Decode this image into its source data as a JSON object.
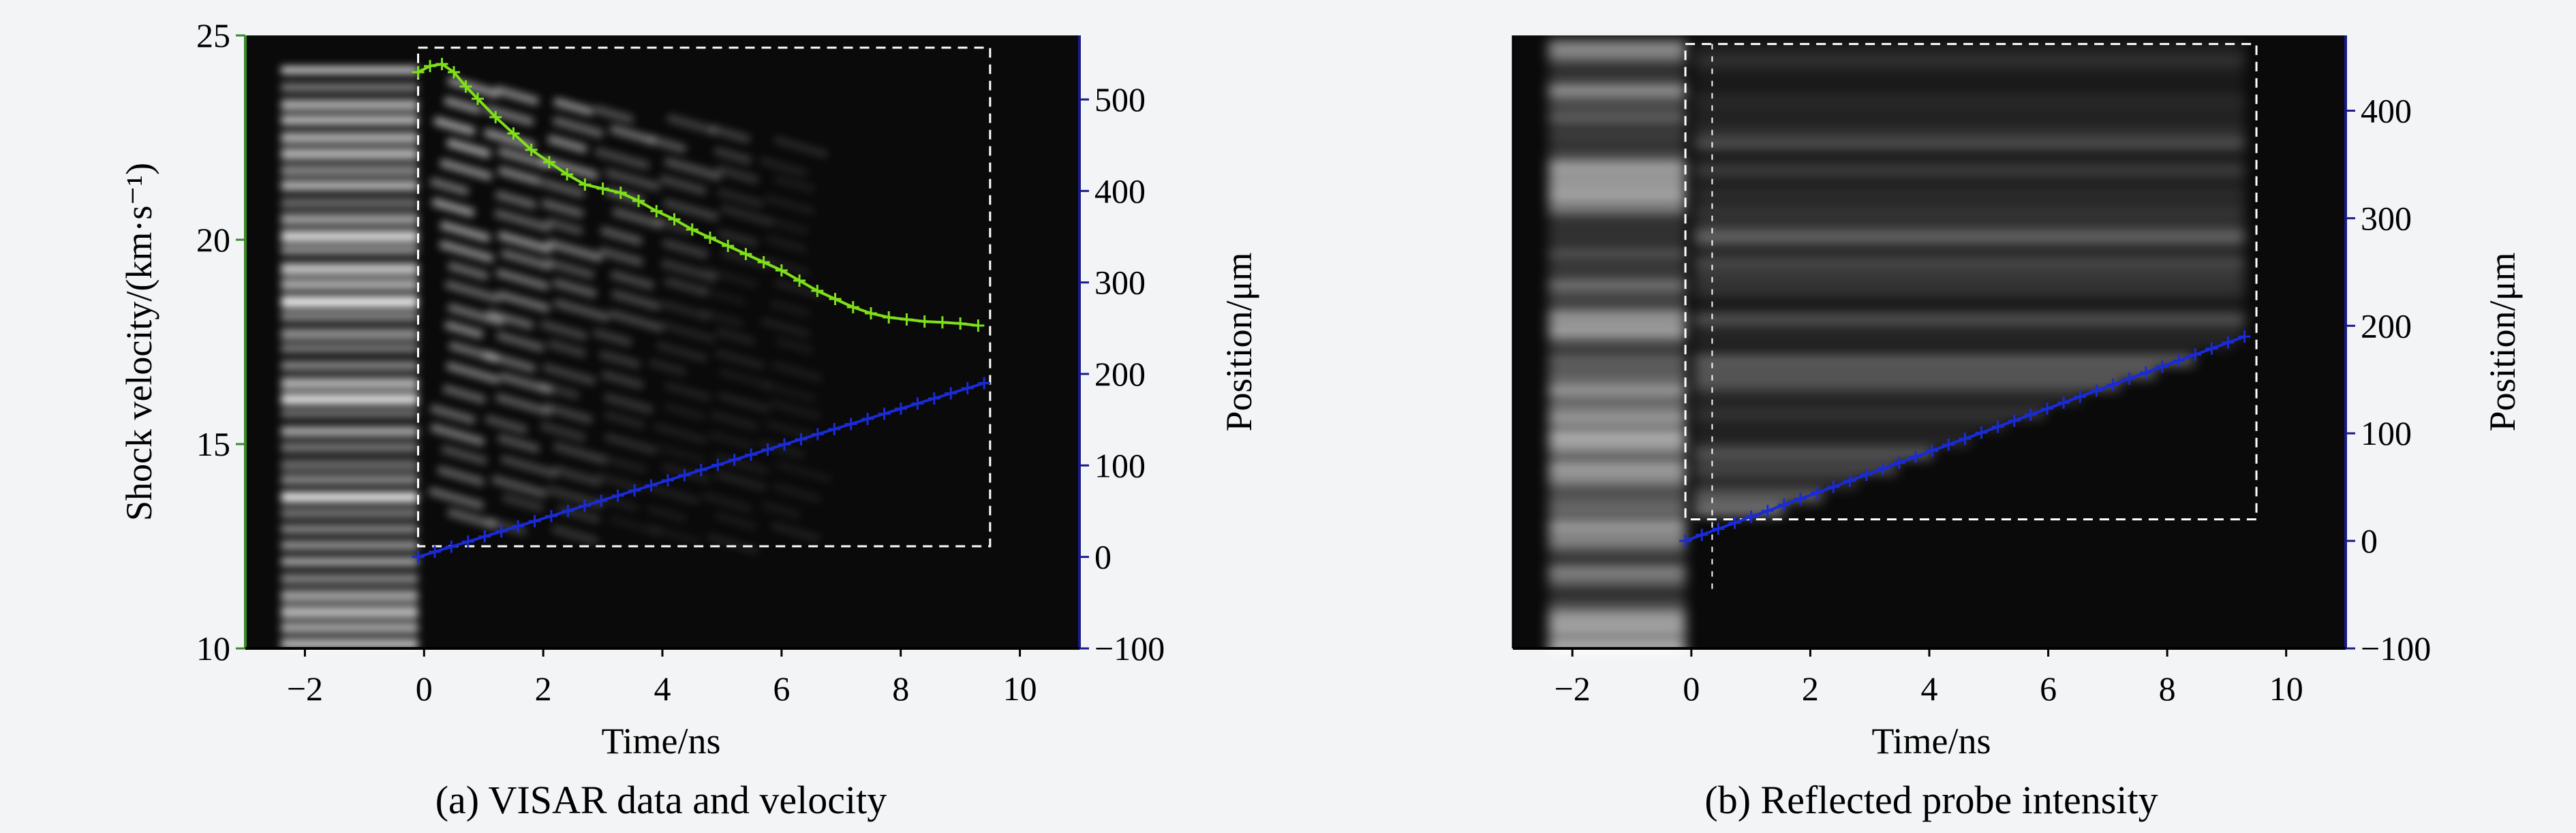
{
  "figure": {
    "colors": {
      "background": "#f3f4f6",
      "plot": "#0a0a0a",
      "velocity": "#7fe01a",
      "position": "#1a2bd6",
      "left_axis": "#3a8a2a",
      "right_axis": "#1a1a8a",
      "roi": "#ffffff"
    }
  },
  "chart_data": [
    {
      "id": "a",
      "type": "line",
      "caption": "(a) VISAR data and velocity",
      "xlabel": "Time/ns",
      "ylabel": "Shock velocity/(km·s⁻¹)",
      "y2label": "Position/μm",
      "xlim": [
        -3,
        11
      ],
      "ylim": [
        10,
        25
      ],
      "y2lim": [
        -100,
        570
      ],
      "xticks": [
        -2,
        0,
        2,
        4,
        6,
        8,
        10
      ],
      "yticks": [
        10,
        15,
        20,
        25
      ],
      "y2ticks": [
        -100,
        0,
        100,
        200,
        300,
        400,
        500
      ],
      "roi_box": {
        "t0": -0.1,
        "t1": 9.5,
        "v0": 12.5,
        "v1": 24.7
      },
      "series": [
        {
          "name": "Shock velocity",
          "axis": "left",
          "color": "#7fe01a",
          "x": [
            -0.1,
            0.1,
            0.3,
            0.5,
            0.7,
            0.9,
            1.2,
            1.5,
            1.8,
            2.1,
            2.4,
            2.7,
            3.0,
            3.3,
            3.6,
            3.9,
            4.2,
            4.5,
            4.8,
            5.1,
            5.4,
            5.7,
            6.0,
            6.3,
            6.6,
            6.9,
            7.2,
            7.5,
            7.8,
            8.1,
            8.4,
            8.7,
            9.0,
            9.3
          ],
          "y": [
            24.1,
            24.25,
            24.3,
            24.1,
            23.75,
            23.45,
            23.0,
            22.6,
            22.2,
            21.9,
            21.6,
            21.35,
            21.25,
            21.15,
            20.95,
            20.7,
            20.5,
            20.25,
            20.05,
            19.85,
            19.65,
            19.45,
            19.25,
            19.0,
            18.75,
            18.55,
            18.35,
            18.2,
            18.1,
            18.05,
            18.0,
            17.98,
            17.95,
            17.9
          ]
        },
        {
          "name": "Shock position",
          "axis": "right",
          "color": "#1a2bd6",
          "x": [
            -0.1,
            9.4
          ],
          "y": [
            0,
            190
          ]
        }
      ]
    },
    {
      "id": "b",
      "type": "line",
      "caption": "(b) Reflected probe intensity",
      "xlabel": "Time/ns",
      "ylabel": "",
      "y2label": "Position/μm",
      "xlim": [
        -3,
        11
      ],
      "y2lim": [
        -100,
        470
      ],
      "xticks": [
        -2,
        0,
        2,
        4,
        6,
        8,
        10
      ],
      "y2ticks": [
        -100,
        0,
        100,
        200,
        300,
        400
      ],
      "roi_box": {
        "t0": -0.1,
        "t1": 9.5,
        "p0": 20,
        "p1": 462
      },
      "series": [
        {
          "name": "Shock position",
          "axis": "right",
          "color": "#1a2bd6",
          "x": [
            -0.1,
            9.3
          ],
          "y": [
            0,
            190
          ]
        }
      ]
    }
  ]
}
